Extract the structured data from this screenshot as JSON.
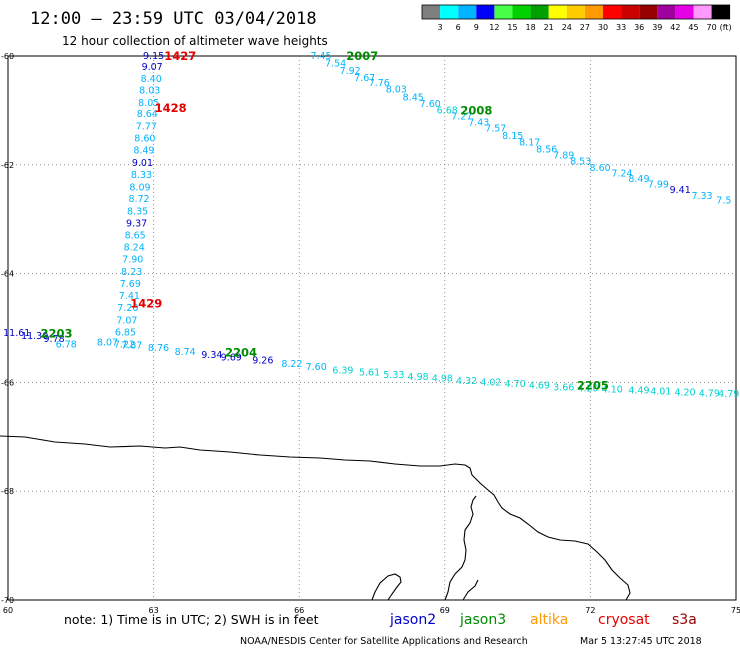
{
  "header": {
    "title": "12:00 – 23:59 UTC 03/04/2018",
    "subtitle": "12 hour collection of altimeter wave heights"
  },
  "legend": {
    "colors": [
      "#7f7f7f",
      "#00ffff",
      "#00b4ff",
      "#0000ff",
      "#46ff46",
      "#00d200",
      "#00a000",
      "#ffff00",
      "#ffcc00",
      "#ff9900",
      "#ff0000",
      "#c80000",
      "#960000",
      "#a000a0",
      "#e600e6",
      "#ff99ff",
      "#000000"
    ],
    "labels": [
      "3",
      "6",
      "9",
      "12",
      "15",
      "18",
      "21",
      "24",
      "27",
      "30",
      "33",
      "36",
      "39",
      "42",
      "45",
      "70"
    ],
    "unit": "(ft)"
  },
  "axes": {
    "lon_ticks": [
      {
        "value": 60,
        "label": "60"
      },
      {
        "value": 63,
        "label": "63"
      },
      {
        "value": 66,
        "label": "66"
      },
      {
        "value": 69,
        "label": "69"
      },
      {
        "value": 72,
        "label": "72"
      },
      {
        "value": 75,
        "label": "75"
      }
    ],
    "lat_ticks": [
      {
        "value": -60,
        "label": "-60"
      },
      {
        "value": -62,
        "label": "-62"
      },
      {
        "value": -64,
        "label": "-64"
      },
      {
        "value": -66,
        "label": "-66"
      },
      {
        "value": -68,
        "label": "-68"
      },
      {
        "value": -70,
        "label": "-70"
      }
    ]
  },
  "tracks": [
    {
      "points": [
        {
          "t": "9.15",
          "c": "#0000c8",
          "lon": 63.0,
          "lat": -60.0
        },
        {
          "t": "9.07",
          "c": "#0000c8",
          "lon": 62.97,
          "lat": -60.2
        },
        {
          "t": "8.40",
          "c": "#00b4ff",
          "lon": 62.95,
          "lat": -60.42
        },
        {
          "t": "8.03",
          "c": "#00b4ff",
          "lon": 62.92,
          "lat": -60.63
        },
        {
          "t": "8.05",
          "c": "#00b4ff",
          "lon": 62.9,
          "lat": -60.86
        },
        {
          "t": "8.64",
          "c": "#00b4ff",
          "lon": 62.87,
          "lat": -61.07
        },
        {
          "t": "7.77",
          "c": "#00b4ff",
          "lon": 62.85,
          "lat": -61.3
        },
        {
          "t": "8.60",
          "c": "#00b4ff",
          "lon": 62.82,
          "lat": -61.52
        },
        {
          "t": "8.49",
          "c": "#00b4ff",
          "lon": 62.8,
          "lat": -61.74
        },
        {
          "t": "9.01",
          "c": "#0000c8",
          "lon": 62.77,
          "lat": -61.97
        },
        {
          "t": "8.33",
          "c": "#00b4ff",
          "lon": 62.75,
          "lat": -62.19
        },
        {
          "t": "8.09",
          "c": "#00b4ff",
          "lon": 62.72,
          "lat": -62.42
        },
        {
          "t": "8.72",
          "c": "#00b4ff",
          "lon": 62.7,
          "lat": -62.63
        },
        {
          "t": "8.35",
          "c": "#00b4ff",
          "lon": 62.67,
          "lat": -62.86
        },
        {
          "t": "9.37",
          "c": "#0000c8",
          "lon": 62.65,
          "lat": -63.08
        },
        {
          "t": "8.65",
          "c": "#00b4ff",
          "lon": 62.62,
          "lat": -63.3
        },
        {
          "t": "8.24",
          "c": "#00b4ff",
          "lon": 62.6,
          "lat": -63.52
        },
        {
          "t": "7.90",
          "c": "#00b4ff",
          "lon": 62.57,
          "lat": -63.74
        },
        {
          "t": "8.23",
          "c": "#00b4ff",
          "lon": 62.55,
          "lat": -63.97
        },
        {
          "t": "7.69",
          "c": "#00b4ff",
          "lon": 62.52,
          "lat": -64.19
        },
        {
          "t": "7.41",
          "c": "#00b4ff",
          "lon": 62.5,
          "lat": -64.41
        },
        {
          "t": "7.20",
          "c": "#00b4ff",
          "lon": 62.47,
          "lat": -64.63
        },
        {
          "t": "7.07",
          "c": "#00b4ff",
          "lon": 62.45,
          "lat": -64.86
        },
        {
          "t": "6.85",
          "c": "#00b4ff",
          "lon": 62.42,
          "lat": -65.08
        },
        {
          "t": "7.22",
          "c": "#00b4ff",
          "lon": 62.4,
          "lat": -65.3
        }
      ]
    },
    {
      "points": [
        {
          "t": "11.61",
          "c": "#0000c8",
          "lon": 60.18,
          "lat": -65.09
        },
        {
          "t": "11.30",
          "c": "#0000c8",
          "lon": 60.55,
          "lat": -65.15
        },
        {
          "t": "9.78",
          "c": "#0000c8",
          "lon": 60.95,
          "lat": -65.2
        },
        {
          "t": "6.78",
          "c": "#00b4ff",
          "lon": 61.2,
          "lat": -65.3
        },
        {
          "t": "8.07",
          "c": "#00b4ff",
          "lon": 62.05,
          "lat": -65.27
        },
        {
          "t": "7.87",
          "c": "#00b4ff",
          "lon": 62.55,
          "lat": -65.32
        },
        {
          "t": "8.76",
          "c": "#00b4ff",
          "lon": 63.1,
          "lat": -65.37
        },
        {
          "t": "8.74",
          "c": "#00b4ff",
          "lon": 63.65,
          "lat": -65.44
        },
        {
          "t": "9.34",
          "c": "#0000c8",
          "lon": 64.2,
          "lat": -65.5
        },
        {
          "t": "9.69",
          "c": "#0000c8",
          "lon": 64.6,
          "lat": -65.54
        },
        {
          "t": "9.26",
          "c": "#0000c8",
          "lon": 65.25,
          "lat": -65.6
        },
        {
          "t": "8.22",
          "c": "#00b4ff",
          "lon": 65.85,
          "lat": -65.66
        }
      ]
    },
    {
      "points": [
        {
          "t": "7.60",
          "c": "#00b4ff",
          "lon": 66.35,
          "lat": -65.72
        },
        {
          "t": "6.39",
          "c": "#00d2d2",
          "lon": 66.9,
          "lat": -65.78
        },
        {
          "t": "5.61",
          "c": "#00d2d2",
          "lon": 67.45,
          "lat": -65.82
        },
        {
          "t": "5.33",
          "c": "#00d2d2",
          "lon": 67.95,
          "lat": -65.86
        },
        {
          "t": "4.98",
          "c": "#00d2d2",
          "lon": 68.45,
          "lat": -65.9
        },
        {
          "t": "4.98",
          "c": "#00d2d2",
          "lon": 68.95,
          "lat": -65.93
        },
        {
          "t": "4.32",
          "c": "#00d2d2",
          "lon": 69.45,
          "lat": -65.97
        },
        {
          "t": "4.02",
          "c": "#00d2d2",
          "lon": 69.95,
          "lat": -66.0
        },
        {
          "t": "4.70",
          "c": "#00d2d2",
          "lon": 70.45,
          "lat": -66.03
        },
        {
          "t": "4.69",
          "c": "#00d2d2",
          "lon": 70.95,
          "lat": -66.06
        },
        {
          "t": "3.66",
          "c": "#00d2d2",
          "lon": 71.45,
          "lat": -66.09
        },
        {
          "t": "4.20",
          "c": "#00d2d2",
          "lon": 71.95,
          "lat": -66.11
        },
        {
          "t": "4.10",
          "c": "#00d2d2",
          "lon": 72.45,
          "lat": -66.13
        },
        {
          "t": "4.49",
          "c": "#00d2d2",
          "lon": 73.0,
          "lat": -66.15
        },
        {
          "t": "4.01",
          "c": "#00d2d2",
          "lon": 73.45,
          "lat": -66.17
        },
        {
          "t": "4.20",
          "c": "#00d2d2",
          "lon": 73.95,
          "lat": -66.19
        },
        {
          "t": "4.79",
          "c": "#00d2d2",
          "lon": 74.45,
          "lat": -66.2
        },
        {
          "t": "4.79",
          "c": "#00d2d2",
          "lon": 74.85,
          "lat": -66.21
        }
      ]
    },
    {
      "points": [
        {
          "t": "7.45",
          "c": "#00b4ff",
          "lon": 66.45,
          "lat": -60.0
        },
        {
          "t": "7.54",
          "c": "#00b4ff",
          "lon": 66.75,
          "lat": -60.14
        },
        {
          "t": "7.92",
          "c": "#00b4ff",
          "lon": 67.05,
          "lat": -60.28
        },
        {
          "t": "7.67",
          "c": "#00b4ff",
          "lon": 67.35,
          "lat": -60.4
        },
        {
          "t": "7.76",
          "c": "#00b4ff",
          "lon": 67.65,
          "lat": -60.5
        },
        {
          "t": "8.03",
          "c": "#00b4ff",
          "lon": 68.0,
          "lat": -60.62
        },
        {
          "t": "8.45",
          "c": "#00b4ff",
          "lon": 68.35,
          "lat": -60.76
        },
        {
          "t": "7.60",
          "c": "#00b4ff",
          "lon": 68.7,
          "lat": -60.88
        },
        {
          "t": "6.68",
          "c": "#00d2d2",
          "lon": 69.05,
          "lat": -61.0
        },
        {
          "t": "7.27",
          "c": "#00b4ff",
          "lon": 69.35,
          "lat": -61.11
        },
        {
          "t": "7.43",
          "c": "#00b4ff",
          "lon": 69.7,
          "lat": -61.22
        },
        {
          "t": "7.57",
          "c": "#00b4ff",
          "lon": 70.05,
          "lat": -61.33
        },
        {
          "t": "8.15",
          "c": "#00b4ff",
          "lon": 70.4,
          "lat": -61.47
        },
        {
          "t": "8.17",
          "c": "#00b4ff",
          "lon": 70.75,
          "lat": -61.59
        },
        {
          "t": "8.56",
          "c": "#00b4ff",
          "lon": 71.1,
          "lat": -61.72
        },
        {
          "t": "7.89",
          "c": "#00b4ff",
          "lon": 71.45,
          "lat": -61.83
        },
        {
          "t": "8.53",
          "c": "#00b4ff",
          "lon": 71.8,
          "lat": -61.94
        },
        {
          "t": "8.60",
          "c": "#00b4ff",
          "lon": 72.2,
          "lat": -62.06
        },
        {
          "t": "7.24",
          "c": "#00b4ff",
          "lon": 72.65,
          "lat": -62.16
        },
        {
          "t": "8.49",
          "c": "#00b4ff",
          "lon": 73.0,
          "lat": -62.26
        },
        {
          "t": "7.99",
          "c": "#00b4ff",
          "lon": 73.4,
          "lat": -62.36
        },
        {
          "t": "9.41",
          "c": "#0000c8",
          "lon": 73.85,
          "lat": -62.46
        },
        {
          "t": "7.33",
          "c": "#00b4ff",
          "lon": 74.3,
          "lat": -62.57
        },
        {
          "t": "7.5",
          "c": "#00b4ff",
          "lon": 74.75,
          "lat": -62.66
        }
      ]
    }
  ],
  "time_labels": [
    {
      "t": "1427",
      "c": "#e60000",
      "lon": 63.55,
      "lat": -60.0
    },
    {
      "t": "1428",
      "c": "#e60000",
      "lon": 63.35,
      "lat": -60.96
    },
    {
      "t": "1429",
      "c": "#e60000",
      "lon": 62.85,
      "lat": -64.55
    },
    {
      "t": "2203",
      "c": "#008c00",
      "lon": 61.0,
      "lat": -65.1
    },
    {
      "t": "2204",
      "c": "#008c00",
      "lon": 64.8,
      "lat": -65.45
    },
    {
      "t": "2007",
      "c": "#008c00",
      "lon": 67.3,
      "lat": -60.0
    },
    {
      "t": "2008",
      "c": "#008c00",
      "lon": 69.65,
      "lat": -61.0
    },
    {
      "t": "2205",
      "c": "#008c00",
      "lon": 72.05,
      "lat": -66.06
    }
  ],
  "coast": [
    [
      [
        0,
        436
      ],
      [
        25,
        437
      ],
      [
        55,
        442
      ],
      [
        85,
        444
      ],
      [
        110,
        447
      ],
      [
        140,
        446
      ],
      [
        165,
        448
      ],
      [
        180,
        447
      ],
      [
        200,
        450
      ],
      [
        230,
        452
      ],
      [
        260,
        455
      ],
      [
        290,
        457
      ],
      [
        320,
        458
      ],
      [
        345,
        460
      ],
      [
        370,
        461
      ],
      [
        395,
        464
      ],
      [
        420,
        466
      ],
      [
        440,
        466
      ],
      [
        455,
        464
      ],
      [
        465,
        465
      ],
      [
        470,
        468
      ],
      [
        472,
        475
      ],
      [
        480,
        483
      ],
      [
        488,
        490
      ],
      [
        494,
        495
      ],
      [
        498,
        502
      ],
      [
        502,
        508
      ],
      [
        510,
        514
      ],
      [
        520,
        518
      ],
      [
        528,
        524
      ],
      [
        538,
        532
      ],
      [
        548,
        537
      ],
      [
        560,
        540
      ],
      [
        575,
        541
      ],
      [
        588,
        544
      ],
      [
        597,
        552
      ],
      [
        605,
        560
      ],
      [
        612,
        570
      ],
      [
        620,
        578
      ],
      [
        628,
        585
      ],
      [
        630,
        593
      ],
      [
        626,
        600
      ]
    ],
    [
      [
        388,
        600
      ],
      [
        392,
        594
      ],
      [
        397,
        587
      ],
      [
        401,
        582
      ],
      [
        400,
        577
      ],
      [
        395,
        574
      ],
      [
        388,
        576
      ],
      [
        380,
        583
      ],
      [
        375,
        592
      ],
      [
        372,
        600
      ]
    ],
    [
      [
        445,
        600
      ],
      [
        448,
        592
      ],
      [
        450,
        582
      ],
      [
        455,
        574
      ],
      [
        462,
        567
      ],
      [
        465,
        560
      ],
      [
        466,
        550
      ],
      [
        464,
        540
      ],
      [
        465,
        530
      ],
      [
        470,
        523
      ],
      [
        473,
        514
      ],
      [
        471,
        507
      ],
      [
        473,
        500
      ],
      [
        476,
        496
      ]
    ],
    [
      [
        463,
        600
      ],
      [
        468,
        592
      ],
      [
        475,
        586
      ],
      [
        478,
        580
      ]
    ]
  ],
  "footer": {
    "note": "note:  1) Time is in UTC;  2) SWH is in feet",
    "satellites": [
      {
        "name": "jason2",
        "color": "#0000c8"
      },
      {
        "name": "jason3",
        "color": "#008c00"
      },
      {
        "name": "altika",
        "color": "#ff9900"
      },
      {
        "name": "cryosat",
        "color": "#e60000"
      },
      {
        "name": "s3a",
        "color": "#960000"
      }
    ],
    "credit": "NOAA/NESDIS Center for Satellite Applications and Research",
    "timestamp": "Mar  5 13:27:45 UTC 2018"
  }
}
